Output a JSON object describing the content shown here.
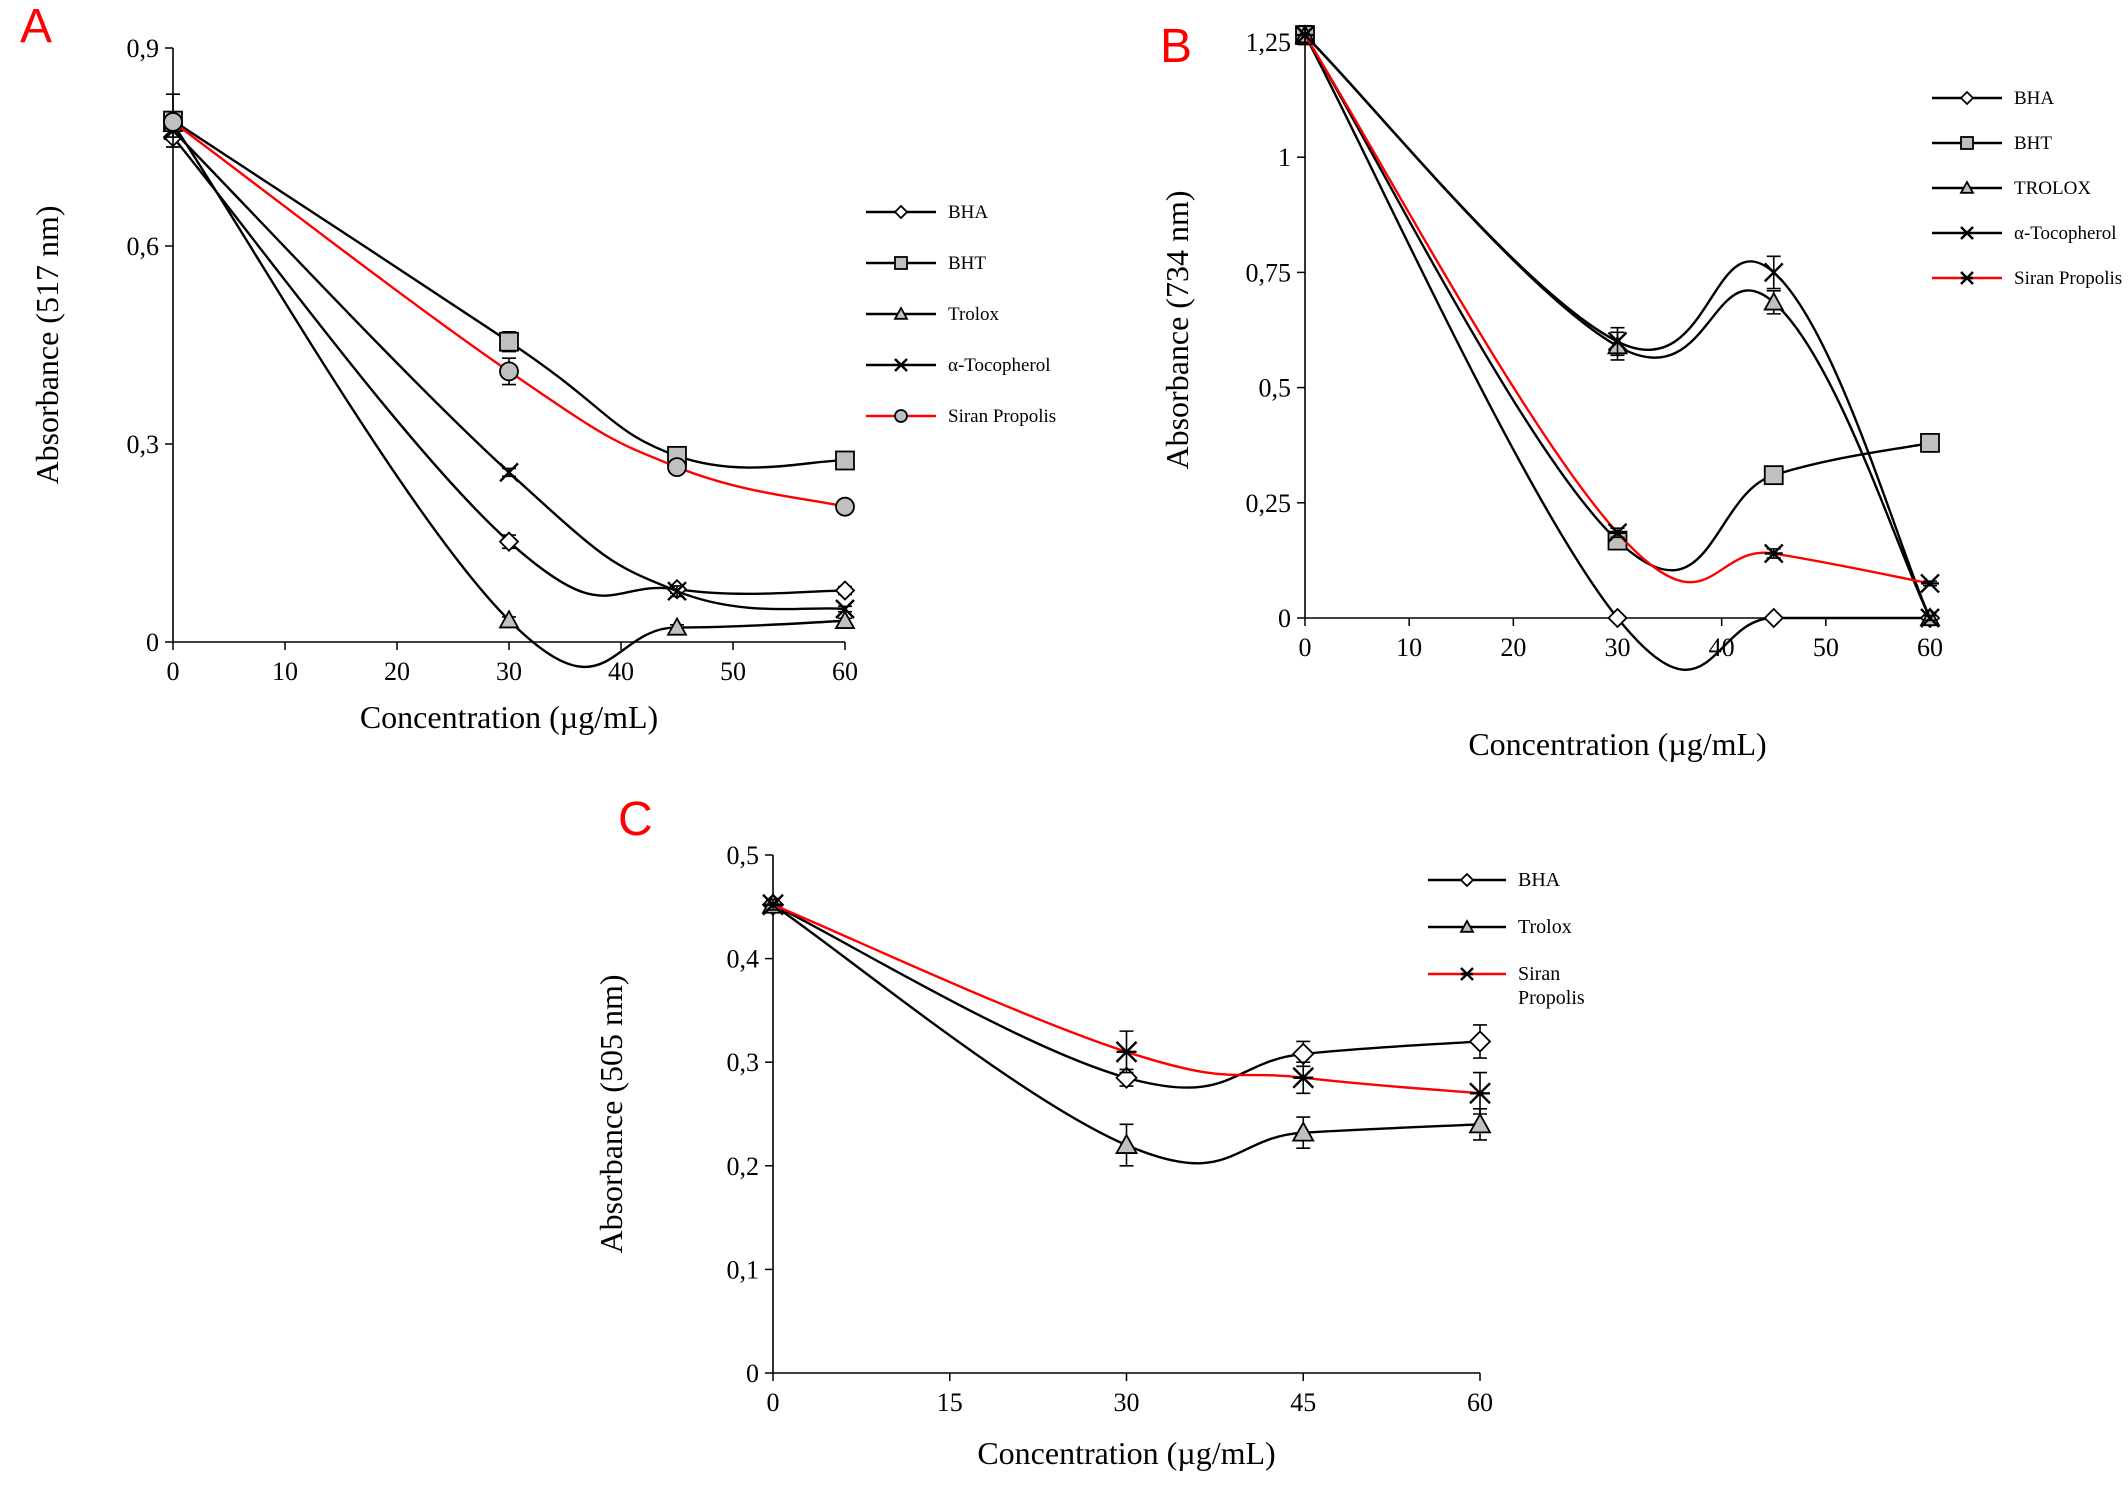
{
  "chart_data": [
    {
      "panel": "A",
      "type": "line",
      "xlabel": "Concentration (µg/mL)",
      "ylabel": "Absorbance (517 nm)",
      "xlim": [
        0,
        60
      ],
      "ylim": [
        0,
        0.9
      ],
      "xticks": [
        0,
        10,
        20,
        30,
        40,
        50,
        60
      ],
      "yticks": [
        0,
        0.3,
        0.6,
        0.9
      ],
      "xtick_labels": [
        "0",
        "10",
        "20",
        "30",
        "40",
        "50",
        "60"
      ],
      "ytick_labels": [
        "0",
        "0,3",
        "0,6",
        "0,9"
      ],
      "grid": false,
      "legend_position": "right",
      "series": [
        {
          "name": "BHA",
          "color": "#000000",
          "marker": "diamond",
          "x": [
            0,
            30,
            45,
            60
          ],
          "y": [
            0.765,
            0.152,
            0.08,
            0.078
          ],
          "err": [
            0.015,
            0.01,
            0.006,
            0.006
          ]
        },
        {
          "name": "BHT",
          "color": "#000000",
          "marker": "square",
          "x": [
            0,
            30,
            45,
            60
          ],
          "y": [
            0.79,
            0.455,
            0.282,
            0.275
          ],
          "err": [
            0.04,
            0.015,
            0.008,
            0.006
          ]
        },
        {
          "name": "Trolox",
          "color": "#000000",
          "marker": "triangle",
          "x": [
            0,
            30,
            45,
            60
          ],
          "y": [
            0.785,
            0.033,
            0.022,
            0.032
          ],
          "err": [
            0.01,
            0.005,
            0.004,
            0.004
          ]
        },
        {
          "name": "α-Tocopherol",
          "color": "#000000",
          "marker": "x",
          "x": [
            0,
            30,
            45,
            60
          ],
          "y": [
            0.775,
            0.257,
            0.077,
            0.05
          ],
          "err": [
            0.01,
            0.006,
            0.008,
            0.004
          ]
        },
        {
          "name": "Siran Propolis",
          "color": "#ff0000",
          "marker": "circle",
          "x": [
            0,
            30,
            45,
            60
          ],
          "y": [
            0.788,
            0.41,
            0.265,
            0.205
          ],
          "err": [
            0.01,
            0.02,
            0.008,
            0.005
          ]
        }
      ]
    },
    {
      "panel": "B",
      "type": "line",
      "xlabel": "Concentration (µg/mL)",
      "ylabel": "Absorbance (734 nm)",
      "xlim": [
        0,
        60
      ],
      "ylim": [
        0,
        1.25
      ],
      "xticks": [
        0,
        10,
        20,
        30,
        40,
        50,
        60
      ],
      "yticks": [
        0,
        0.25,
        0.5,
        0.75,
        1,
        1.25
      ],
      "xtick_labels": [
        "0",
        "10",
        "20",
        "30",
        "40",
        "50",
        "60"
      ],
      "ytick_labels": [
        "0",
        "0,25",
        "0,5",
        "0,75",
        "1",
        "1,25"
      ],
      "grid": false,
      "legend_position": "top-right",
      "series": [
        {
          "name": "BHA",
          "color": "#000000",
          "marker": "diamond",
          "x": [
            0,
            30,
            45,
            60
          ],
          "y": [
            1.265,
            0.0,
            0.0,
            0.0
          ],
          "err": [
            0.02,
            0.005,
            0.005,
            0.005
          ]
        },
        {
          "name": "BHT",
          "color": "#000000",
          "marker": "square",
          "x": [
            0,
            30,
            45,
            60
          ],
          "y": [
            1.265,
            0.168,
            0.31,
            0.38
          ],
          "err": [
            0.02,
            0.015,
            0.01,
            0.01
          ]
        },
        {
          "name": "TROLOX",
          "color": "#000000",
          "marker": "triangle",
          "x": [
            0,
            30,
            45,
            60
          ],
          "y": [
            1.265,
            0.59,
            0.685,
            0.0
          ],
          "err": [
            0.02,
            0.03,
            0.025,
            0.005
          ]
        },
        {
          "name": "α-Tocopherol",
          "color": "#000000",
          "marker": "x",
          "x": [
            0,
            30,
            45,
            60
          ],
          "y": [
            1.265,
            0.6,
            0.75,
            0.0
          ],
          "err": [
            0.02,
            0.03,
            0.035,
            0.005
          ]
        },
        {
          "name": "Siran Propolis",
          "color": "#ff0000",
          "marker": "asterisk",
          "x": [
            0,
            30,
            45,
            60
          ],
          "y": [
            1.265,
            0.185,
            0.14,
            0.075
          ],
          "err": [
            0.02,
            0.01,
            0.01,
            0.005
          ]
        }
      ]
    },
    {
      "panel": "C",
      "type": "line",
      "xlabel": "Concentration (µg/mL)",
      "ylabel": "Absorbance (505 nm)",
      "xlim": [
        0,
        60
      ],
      "ylim": [
        0,
        0.5
      ],
      "xticks": [
        0,
        15,
        30,
        45,
        60
      ],
      "yticks": [
        0,
        0.1,
        0.2,
        0.3,
        0.4,
        0.5
      ],
      "xtick_labels": [
        "0",
        "15",
        "30",
        "45",
        "60"
      ],
      "ytick_labels": [
        "0",
        "0,1",
        "0,2",
        "0,3",
        "0,4",
        "0,5"
      ],
      "grid": false,
      "legend_position": "top-right",
      "series": [
        {
          "name": "BHA",
          "color": "#000000",
          "marker": "diamond",
          "x": [
            0,
            30,
            45,
            60
          ],
          "y": [
            0.452,
            0.285,
            0.308,
            0.32
          ],
          "err": [
            0.005,
            0.008,
            0.012,
            0.016
          ]
        },
        {
          "name": "Trolox",
          "color": "#000000",
          "marker": "triangle",
          "x": [
            0,
            30,
            45,
            60
          ],
          "y": [
            0.452,
            0.22,
            0.232,
            0.24
          ],
          "err": [
            0.005,
            0.02,
            0.015,
            0.015
          ]
        },
        {
          "name": "Siran Propolis",
          "color": "#ff0000",
          "marker": "asterisk",
          "legend_lines": [
            "Siran",
            "Propolis"
          ],
          "x": [
            0,
            30,
            45,
            60
          ],
          "y": [
            0.452,
            0.31,
            0.285,
            0.27
          ],
          "err": [
            0.005,
            0.02,
            0.015,
            0.02
          ]
        }
      ]
    }
  ]
}
